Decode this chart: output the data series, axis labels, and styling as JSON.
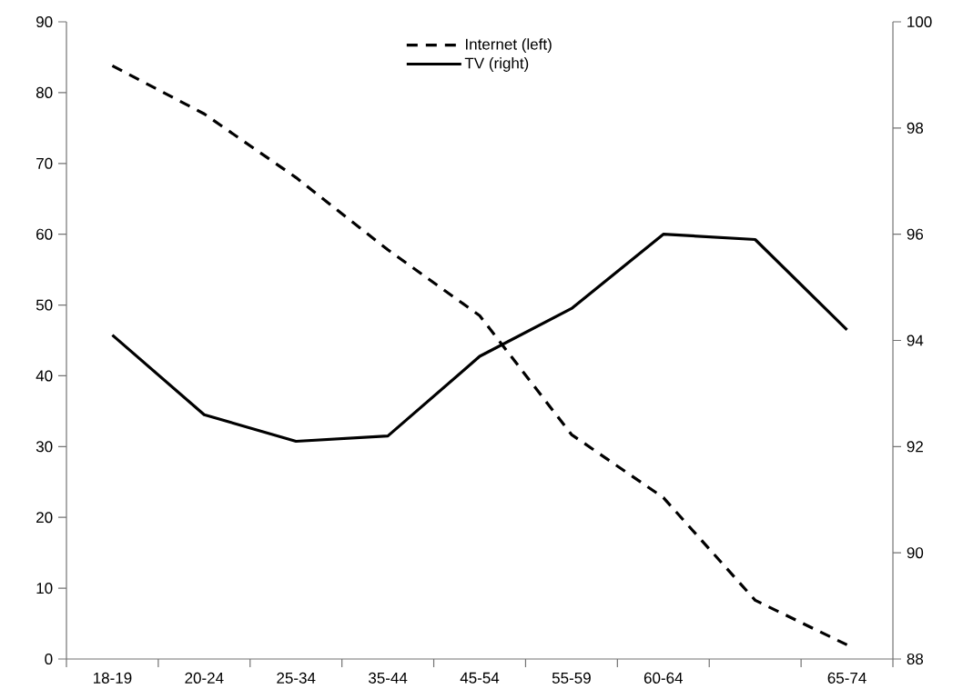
{
  "chart_data": {
    "type": "line",
    "categories": [
      "18-19",
      "20-24",
      "25-34",
      "35-44",
      "45-54",
      "55-59",
      "60-64",
      null,
      "65-74"
    ],
    "series": [
      {
        "name": "Internet (left)",
        "color": "#000000",
        "line_style": "dashed",
        "axis": "y",
        "values": [
          83.8,
          77.0,
          68.0,
          57.8,
          48.5,
          31.7,
          22.8,
          8.3,
          2.0
        ]
      },
      {
        "name": "TV (right)",
        "color": "#000000",
        "line_style": "solid",
        "axis": "y2",
        "values": [
          94.1,
          92.6,
          92.1,
          92.2,
          93.7,
          94.6,
          96.0,
          95.9,
          94.2
        ]
      }
    ],
    "ylim": [
      0,
      90
    ],
    "yticks": [
      0,
      10,
      20,
      30,
      40,
      50,
      60,
      70,
      80,
      90
    ],
    "y2lim": [
      88,
      100
    ],
    "y2ticks": [
      88,
      90,
      92,
      94,
      96,
      98,
      100
    ],
    "legend": "top",
    "grid": false,
    "marker": "none"
  }
}
